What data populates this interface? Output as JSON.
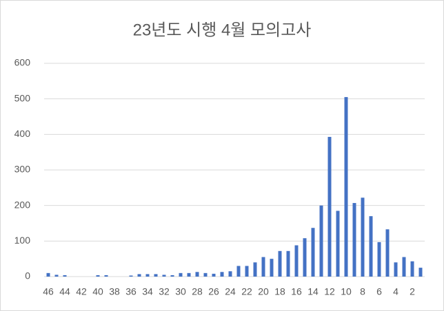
{
  "chart_data": {
    "type": "bar",
    "title": "23년도 시행 4월 모의고사",
    "categories": [
      "46",
      null,
      "44",
      null,
      "42",
      null,
      "40",
      null,
      "38",
      null,
      "36",
      null,
      "34",
      null,
      "32",
      null,
      "30",
      null,
      "28",
      null,
      "26",
      null,
      "24",
      null,
      "22",
      null,
      "20",
      null,
      "18",
      null,
      "16",
      null,
      "14",
      null,
      "12",
      null,
      "10",
      null,
      "8",
      null,
      "6",
      null,
      "4",
      null,
      "2",
      null
    ],
    "values": [
      10,
      5,
      4,
      0,
      0,
      0,
      4,
      4,
      0,
      0,
      3,
      7,
      7,
      7,
      5,
      4,
      10,
      10,
      13,
      10,
      8,
      13,
      15,
      30,
      30,
      40,
      55,
      50,
      72,
      72,
      88,
      108,
      137,
      200,
      393,
      185,
      505,
      207,
      222,
      170,
      97,
      133,
      40,
      55,
      43,
      25
    ],
    "color": "#4472c4",
    "ylim": [
      0,
      600
    ],
    "yticks": [
      0,
      100,
      200,
      300,
      400,
      500,
      600
    ],
    "grid": true
  }
}
